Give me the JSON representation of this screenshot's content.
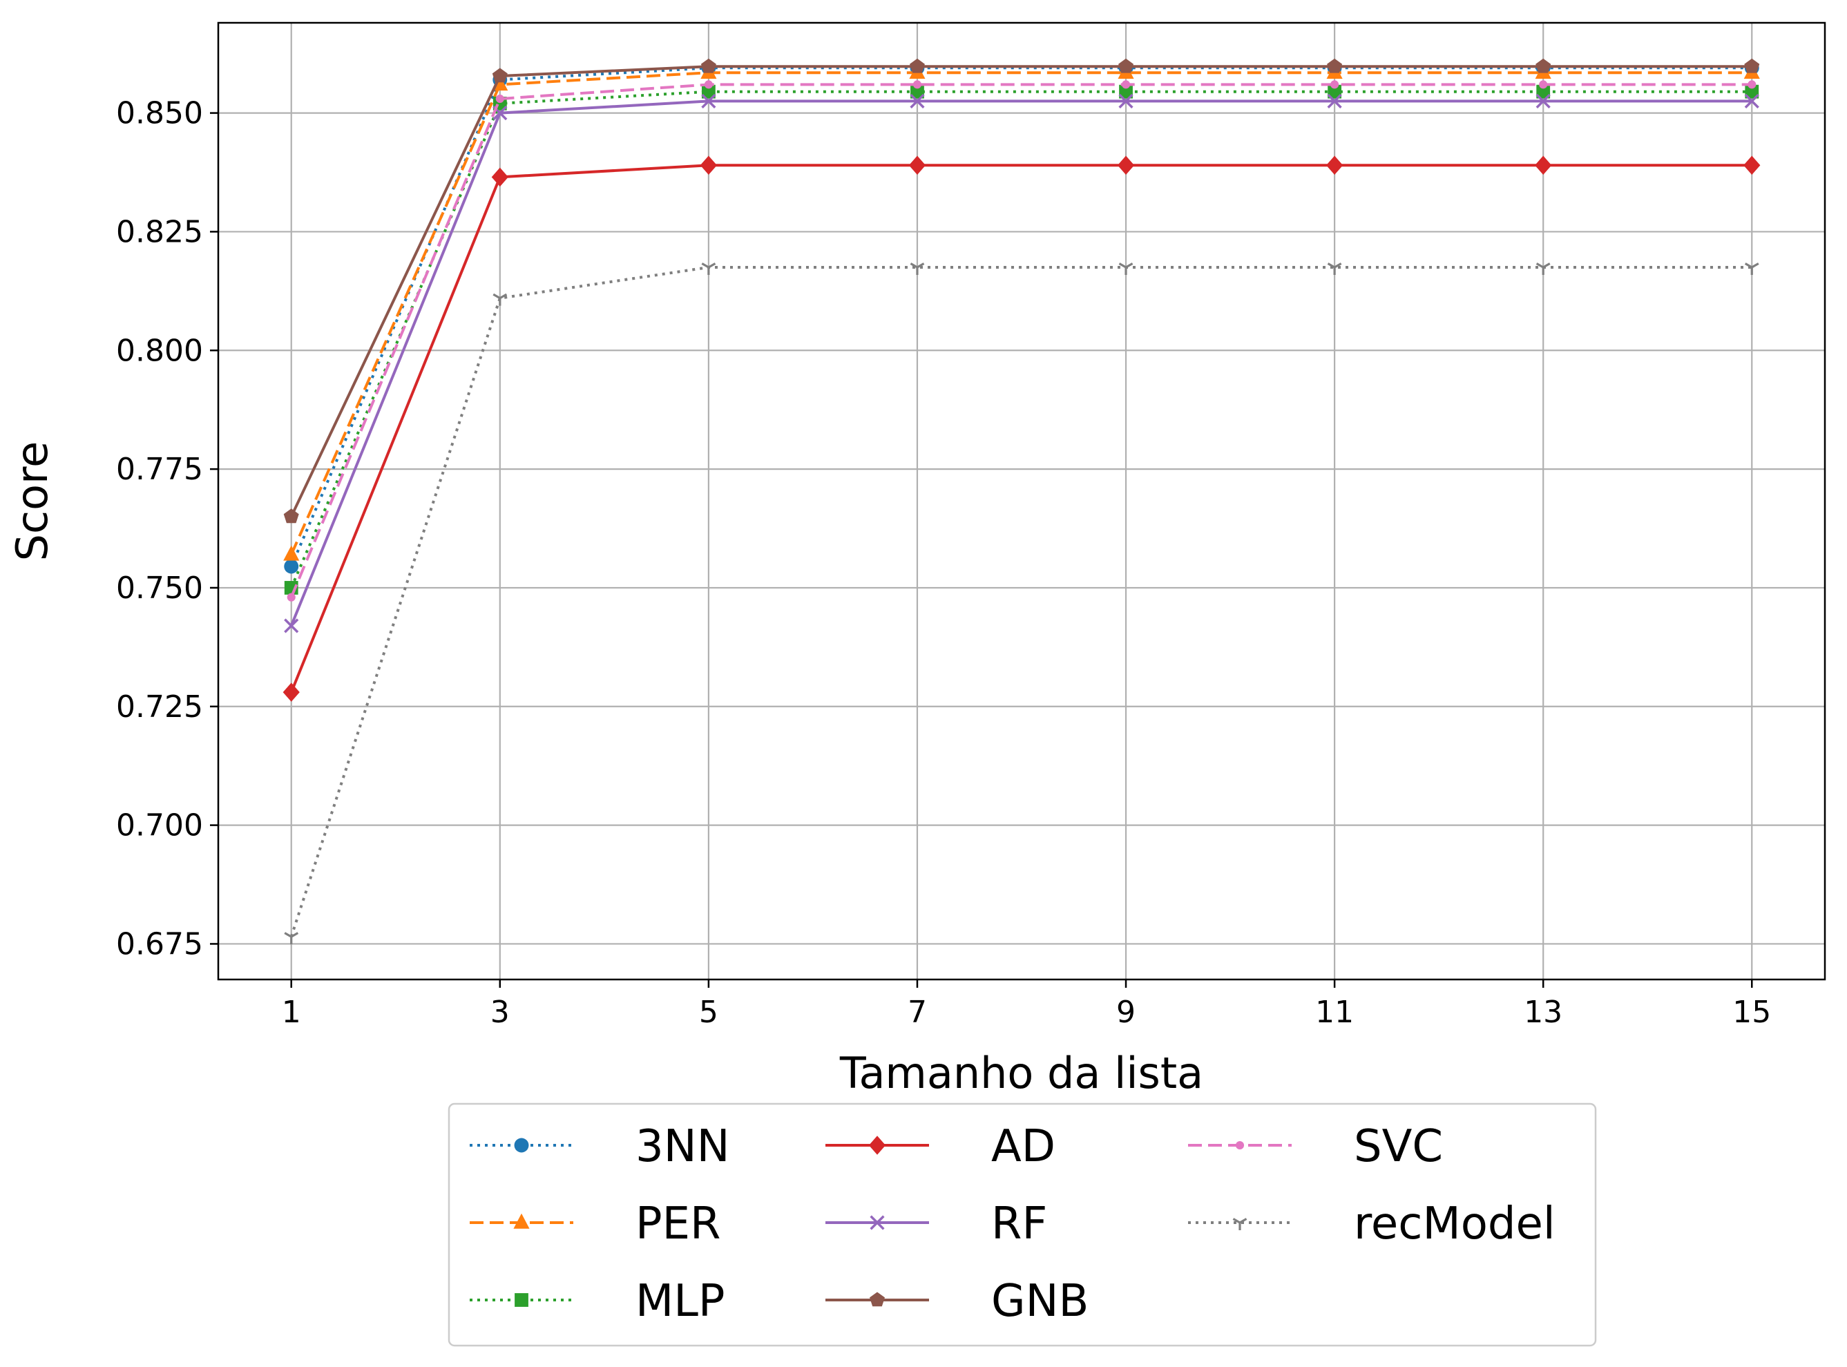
{
  "chart_data": {
    "type": "line",
    "title": "",
    "xlabel": "Tamanho da lista",
    "ylabel": "Score",
    "x": [
      1,
      3,
      5,
      7,
      9,
      11,
      13,
      15
    ],
    "xticks": [
      "1",
      "3",
      "5",
      "7",
      "9",
      "11",
      "13",
      "15"
    ],
    "xlim": [
      0.3,
      15.7
    ],
    "yticks": [
      "0.675",
      "0.700",
      "0.725",
      "0.750",
      "0.775",
      "0.800",
      "0.825",
      "0.850"
    ],
    "ytick_values": [
      0.675,
      0.7,
      0.725,
      0.75,
      0.775,
      0.8,
      0.825,
      0.85
    ],
    "ylim": [
      0.6675,
      0.869
    ],
    "grid": true,
    "legend_position": "bottom-center",
    "series": [
      {
        "name": "3NN",
        "values": [
          0.7545,
          0.857,
          0.8595,
          0.8595,
          0.8595,
          0.8595,
          0.8595,
          0.8595
        ],
        "color": "#1f77b4",
        "linestyle": "dotted",
        "marker": "circle"
      },
      {
        "name": "PER",
        "values": [
          0.757,
          0.856,
          0.8585,
          0.8585,
          0.8585,
          0.8585,
          0.8585,
          0.8585
        ],
        "color": "#ff7f0e",
        "linestyle": "dashed",
        "marker": "triangle"
      },
      {
        "name": "MLP",
        "values": [
          0.75,
          0.852,
          0.8545,
          0.8545,
          0.8545,
          0.8545,
          0.8545,
          0.8545
        ],
        "color": "#2ca02c",
        "linestyle": "dotted",
        "marker": "square"
      },
      {
        "name": "AD",
        "values": [
          0.728,
          0.8365,
          0.839,
          0.839,
          0.839,
          0.839,
          0.839,
          0.839
        ],
        "color": "#d62728",
        "linestyle": "solid",
        "marker": "diamond"
      },
      {
        "name": "RF",
        "values": [
          0.742,
          0.85,
          0.8525,
          0.8525,
          0.8525,
          0.8525,
          0.8525,
          0.8525
        ],
        "color": "#9467bd",
        "linestyle": "solid",
        "marker": "x"
      },
      {
        "name": "GNB",
        "values": [
          0.765,
          0.8578,
          0.8598,
          0.8598,
          0.8598,
          0.8598,
          0.8598,
          0.8598
        ],
        "color": "#8c564b",
        "linestyle": "solid",
        "marker": "pentagon"
      },
      {
        "name": "SVC",
        "values": [
          0.748,
          0.853,
          0.856,
          0.856,
          0.856,
          0.856,
          0.856,
          0.856
        ],
        "color": "#e377c2",
        "linestyle": "dashed",
        "marker": "point"
      },
      {
        "name": "recModel",
        "values": [
          0.6765,
          0.811,
          0.8175,
          0.8175,
          0.8175,
          0.8175,
          0.8175,
          0.8175
        ],
        "color": "#7f7f7f",
        "linestyle": "dotted",
        "marker": "tri_down"
      }
    ]
  }
}
